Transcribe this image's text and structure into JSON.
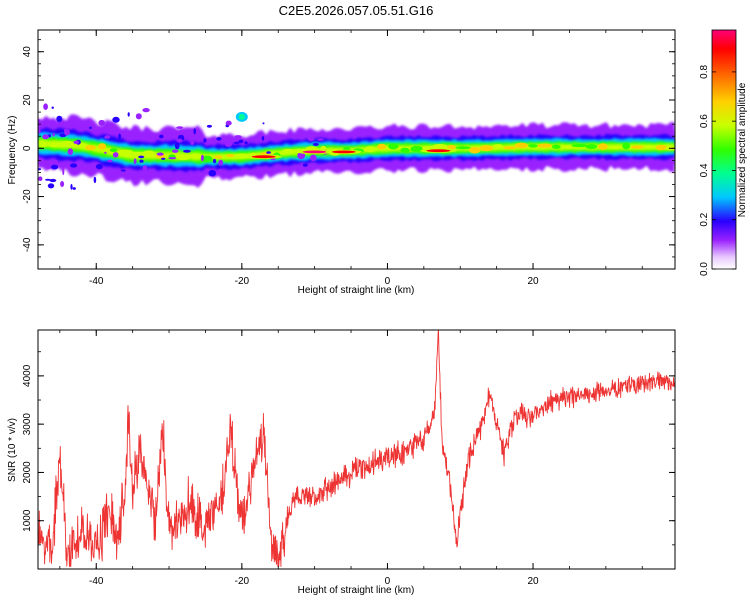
{
  "title": "C2E5.2026.057.05.51.G16",
  "spectrogram": {
    "type": "heatmap",
    "xlabel": "Height of straight line (km)",
    "ylabel": "Frequency (Hz)",
    "xlim": [
      -48,
      39.5
    ],
    "ylim": [
      -50,
      49
    ],
    "xticks": [
      "-40",
      "-20",
      "0",
      "20"
    ],
    "yticks": [
      "40",
      "20",
      "0",
      "-20",
      "-40"
    ],
    "colorbar": {
      "label": "Normalized spectral amplitude",
      "ticks": [
        "0.0",
        "0.2",
        "0.4",
        "0.6",
        "0.8"
      ],
      "range": [
        0,
        0.97
      ]
    },
    "ridge": [
      {
        "x": -47,
        "f": 2
      },
      {
        "x": -42,
        "f": 1
      },
      {
        "x": -35,
        "f": -3
      },
      {
        "x": -30,
        "f": -3
      },
      {
        "x": -25,
        "f": -3.5
      },
      {
        "x": -20,
        "f": -3.5
      },
      {
        "x": -15,
        "f": -2
      },
      {
        "x": -10,
        "f": -1
      },
      {
        "x": -5,
        "f": -1
      },
      {
        "x": 0,
        "f": 0
      },
      {
        "x": 10,
        "f": 0
      },
      {
        "x": 20,
        "f": 0.5
      },
      {
        "x": 30,
        "f": 0.5
      },
      {
        "x": 39,
        "f": 0.5
      }
    ],
    "blobs": [
      {
        "x": -20,
        "f": 13,
        "amp": 0.35
      },
      {
        "x": -10,
        "f": -1.5,
        "amp": 0.95
      },
      {
        "x": -6,
        "f": -1.5,
        "amp": 0.9
      },
      {
        "x": -17,
        "f": -3.5,
        "amp": 0.9
      },
      {
        "x": 7,
        "f": -1,
        "amp": 0.85
      }
    ]
  },
  "snr": {
    "type": "line",
    "xlabel": "Height of straight line (km)",
    "ylabel": "SNR (10 * v/v)",
    "xlim": [
      -48,
      39.5
    ],
    "ylim": [
      0,
      4950
    ],
    "xticks": [
      "-40",
      "-20",
      "0",
      "20"
    ],
    "yticks": [
      "1000",
      "2000",
      "3000",
      "4000"
    ],
    "color": "#ee3333",
    "series": [
      {
        "x": -48,
        "y": 600
      },
      {
        "x": -46,
        "y": 400
      },
      {
        "x": -45,
        "y": 2400
      },
      {
        "x": -44,
        "y": 300
      },
      {
        "x": -42,
        "y": 800
      },
      {
        "x": -40,
        "y": 500
      },
      {
        "x": -38,
        "y": 1200
      },
      {
        "x": -37,
        "y": 600
      },
      {
        "x": -36,
        "y": 1700
      },
      {
        "x": -35.5,
        "y": 3300
      },
      {
        "x": -35,
        "y": 1500
      },
      {
        "x": -34,
        "y": 2600
      },
      {
        "x": -32,
        "y": 900
      },
      {
        "x": -31,
        "y": 2800
      },
      {
        "x": -30,
        "y": 1100
      },
      {
        "x": -29,
        "y": 900
      },
      {
        "x": -27,
        "y": 1300
      },
      {
        "x": -25,
        "y": 900
      },
      {
        "x": -23,
        "y": 1400
      },
      {
        "x": -21.5,
        "y": 2800
      },
      {
        "x": -20,
        "y": 900
      },
      {
        "x": -18,
        "y": 2400
      },
      {
        "x": -17,
        "y": 2800
      },
      {
        "x": -16,
        "y": 700
      },
      {
        "x": -15,
        "y": 100
      },
      {
        "x": -13,
        "y": 1500
      },
      {
        "x": -10,
        "y": 1500
      },
      {
        "x": -7,
        "y": 1800
      },
      {
        "x": -5,
        "y": 2000
      },
      {
        "x": -2,
        "y": 2200
      },
      {
        "x": 0,
        "y": 2300
      },
      {
        "x": 3,
        "y": 2500
      },
      {
        "x": 5,
        "y": 2700
      },
      {
        "x": 6.5,
        "y": 3300
      },
      {
        "x": 7,
        "y": 4900
      },
      {
        "x": 7.5,
        "y": 2600
      },
      {
        "x": 8.5,
        "y": 1800
      },
      {
        "x": 9.5,
        "y": 600
      },
      {
        "x": 11,
        "y": 2200
      },
      {
        "x": 13,
        "y": 3000
      },
      {
        "x": 14,
        "y": 3600
      },
      {
        "x": 16,
        "y": 2400
      },
      {
        "x": 17.5,
        "y": 3200
      },
      {
        "x": 20,
        "y": 3200
      },
      {
        "x": 23,
        "y": 3500
      },
      {
        "x": 27,
        "y": 3600
      },
      {
        "x": 31,
        "y": 3700
      },
      {
        "x": 34,
        "y": 3800
      },
      {
        "x": 37,
        "y": 3900
      },
      {
        "x": 39.5,
        "y": 3850
      }
    ]
  }
}
